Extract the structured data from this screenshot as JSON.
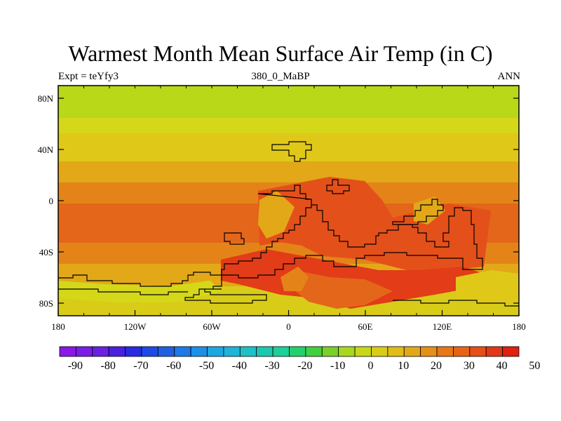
{
  "figure": {
    "title": "Warmest Month Mean Surface Air Temp (in C)",
    "left_label": "Expt = teYfy3",
    "center_label": "380_0_MaBP",
    "right_label": "ANN"
  },
  "map": {
    "x_ticks": [
      "180",
      "120W",
      "60W",
      "0",
      "60E",
      "120E",
      "180"
    ],
    "y_ticks": [
      "80N",
      "40N",
      "0",
      "40S",
      "80S"
    ]
  },
  "colorbar": {
    "labels": [
      "-90",
      "-80",
      "-70",
      "-60",
      "-50",
      "-40",
      "-30",
      "-20",
      "-10",
      "0",
      "10",
      "20",
      "30",
      "40",
      "50"
    ],
    "colors": [
      "#8a17e6",
      "#7a1ee6",
      "#6a20e0",
      "#4a20e0",
      "#2a2ae0",
      "#1e4ae6",
      "#2060e0",
      "#1e78e6",
      "#1e90e6",
      "#1ea8e0",
      "#1eb4d8",
      "#1ec0c8",
      "#1ec8b0",
      "#1ed098",
      "#22d070",
      "#40d040",
      "#78d028",
      "#a8d81e",
      "#c8d818",
      "#d8cc18",
      "#e0bc18",
      "#e2a818",
      "#e49018",
      "#e67818",
      "#e66418",
      "#e45018",
      "#e23818",
      "#e02010"
    ]
  }
}
